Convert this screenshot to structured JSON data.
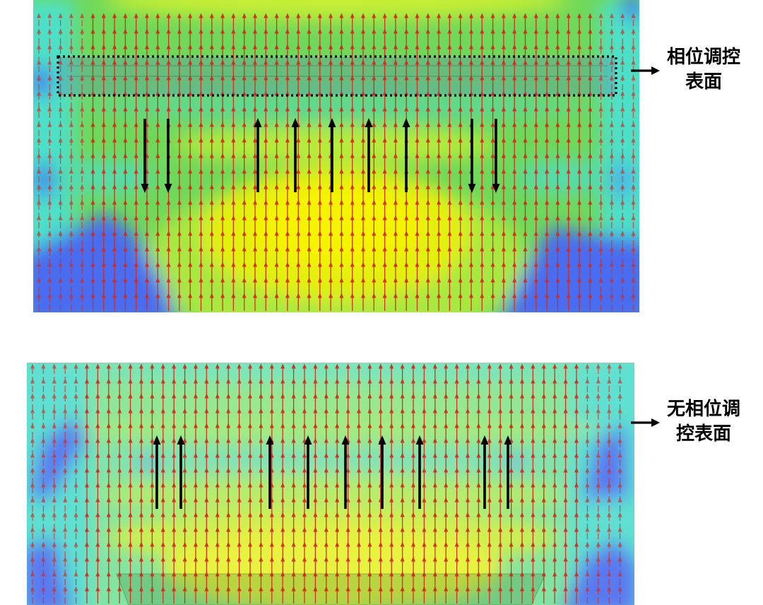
{
  "figure": {
    "top_panel": {
      "label_line1": "相位调控",
      "label_line2": "表面",
      "black_arrows": [
        "arrow-down",
        "arrow-down",
        "arrow-up",
        "arrow-up",
        "arrow-up",
        "arrow-up",
        "arrow-up",
        "arrow-down",
        "arrow-down"
      ]
    },
    "bottom_panel": {
      "label_line1": "无相位调",
      "label_line2": "控表面",
      "black_arrows": [
        "arrow-up",
        "arrow-up",
        "arrow-up",
        "arrow-up",
        "arrow-up",
        "arrow-up",
        "arrow-up",
        "arrow-up",
        "arrow-up"
      ]
    }
  },
  "colors": {
    "field_arrow": "#d42a1c",
    "indicator_arrow": "#000000",
    "heat_low": "#3f62f2",
    "heat_edge": "#4ee0c8",
    "heat_mid": "#6fd85a",
    "heat_high": "#f0f200"
  }
}
